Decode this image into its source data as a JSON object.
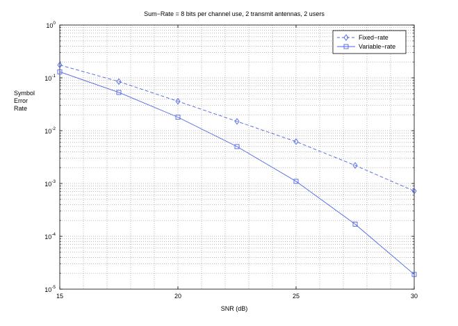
{
  "chart_data": {
    "type": "line",
    "title": "Sum−Rate = 8 bits per channel use, 2 transmit antennas, 2 users",
    "xlabel": "SNR (dB)",
    "ylabel_lines": [
      "Symbol",
      "Error",
      "Rate"
    ],
    "xlim": [
      15,
      30
    ],
    "ylim": [
      1e-05,
      1
    ],
    "yscale": "log",
    "grid": true,
    "legend_position": "top-right",
    "x_ticks": [
      15,
      20,
      25,
      30
    ],
    "y_ticks": [
      {
        "value": 1e-05,
        "base": "10",
        "exp": "-5"
      },
      {
        "value": 0.0001,
        "base": "10",
        "exp": "-4"
      },
      {
        "value": 0.001,
        "base": "10",
        "exp": "-3"
      },
      {
        "value": 0.01,
        "base": "10",
        "exp": "-2"
      },
      {
        "value": 0.1,
        "base": "10",
        "exp": "-1"
      },
      {
        "value": 1,
        "base": "10",
        "exp": "0"
      }
    ],
    "x": [
      15,
      17.5,
      20,
      22.5,
      25,
      27.5,
      30
    ],
    "series": [
      {
        "name": "Fixed−rate",
        "marker": "diamond",
        "line": "dashed",
        "color": "#4a63e8",
        "values": [
          0.175,
          0.085,
          0.036,
          0.015,
          0.0062,
          0.0022,
          0.00072
        ]
      },
      {
        "name": "Variable−rate",
        "marker": "square",
        "line": "solid",
        "color": "#4a63e8",
        "values": [
          0.13,
          0.053,
          0.018,
          0.005,
          0.0011,
          0.00017,
          1.9e-05
        ]
      }
    ]
  }
}
